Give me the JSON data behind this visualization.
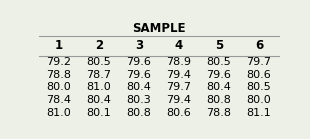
{
  "title": "SAMPLE",
  "columns": [
    "1",
    "2",
    "3",
    "4",
    "5",
    "6"
  ],
  "rows": [
    [
      79.2,
      80.5,
      79.6,
      78.9,
      80.5,
      79.7
    ],
    [
      78.8,
      78.7,
      79.6,
      79.4,
      79.6,
      80.6
    ],
    [
      80.0,
      81.0,
      80.4,
      79.7,
      80.4,
      80.5
    ],
    [
      78.4,
      80.4,
      80.3,
      79.4,
      80.8,
      80.0
    ],
    [
      81.0,
      80.1,
      80.8,
      80.6,
      78.8,
      81.1
    ]
  ],
  "bg_color": "#edf0e6",
  "line_color": "#999999",
  "title_fontsize": 8.5,
  "header_fontsize": 8.5,
  "cell_fontsize": 8.0
}
